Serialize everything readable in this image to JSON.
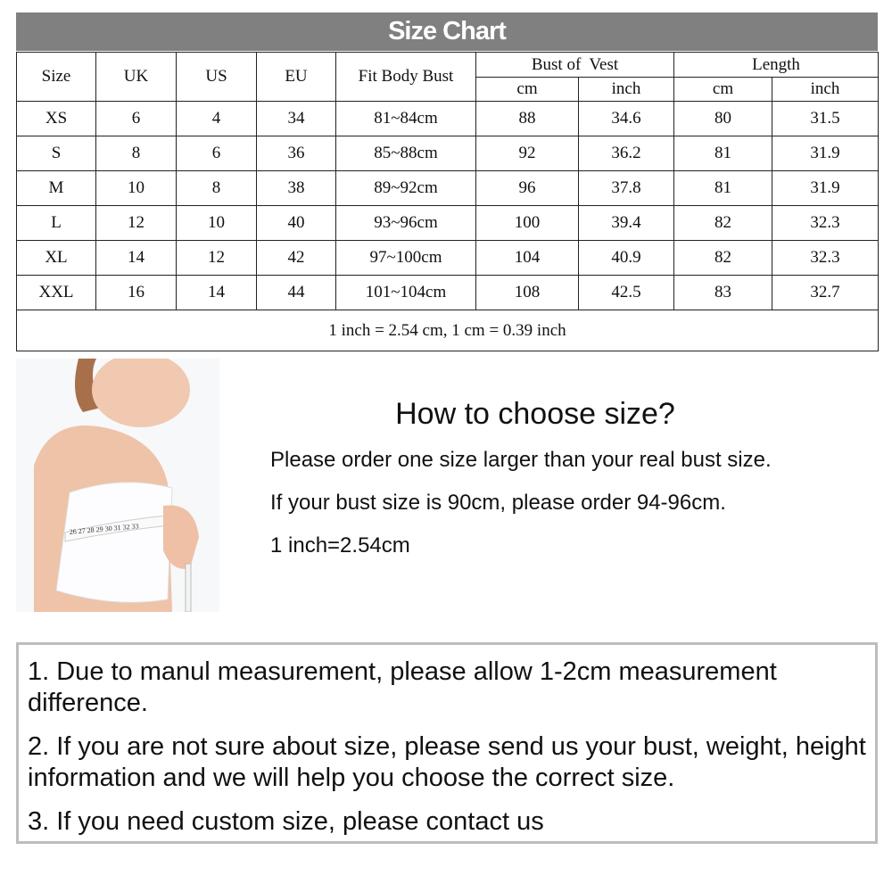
{
  "title": "Size Chart",
  "table": {
    "headers": {
      "size": "Size",
      "uk": "UK",
      "us": "US",
      "eu": "EU",
      "fit": "Fit Body Bust",
      "bust": "Bust of  Vest",
      "length": "Length",
      "cm": "cm",
      "inch": "inch"
    },
    "rows": [
      [
        "XS",
        "6",
        "4",
        "34",
        "81~84cm",
        "88",
        "34.6",
        "80",
        "31.5"
      ],
      [
        "S",
        "8",
        "6",
        "36",
        "85~88cm",
        "92",
        "36.2",
        "81",
        "31.9"
      ],
      [
        "M",
        "10",
        "8",
        "38",
        "89~92cm",
        "96",
        "37.8",
        "81",
        "31.9"
      ],
      [
        "L",
        "12",
        "10",
        "40",
        "93~96cm",
        "100",
        "39.4",
        "82",
        "32.3"
      ],
      [
        "XL",
        "14",
        "12",
        "42",
        "97~100cm",
        "104",
        "40.9",
        "82",
        "32.3"
      ],
      [
        "XXL",
        "16",
        "14",
        "44",
        "101~104cm",
        "108",
        "42.5",
        "83",
        "32.7"
      ]
    ],
    "footer": "1 inch = 2.54 cm, 1 cm = 0.39 inch"
  },
  "photo": {
    "tape_numbers": "26 27 28 29 30 31 32 33"
  },
  "howto": {
    "title": "How to choose size?",
    "lines": [
      "Please order one size larger than your real bust size.",
      "If your bust size is 90cm, please order 94-96cm.",
      "1 inch=2.54cm"
    ]
  },
  "notes": [
    "1. Due to manul measurement, please allow 1-2cm measurement difference.",
    "2. If you are not sure about size, please send us your bust, weight, height information and we will help you choose the correct size.",
    "3. If you need custom size, please contact us"
  ]
}
